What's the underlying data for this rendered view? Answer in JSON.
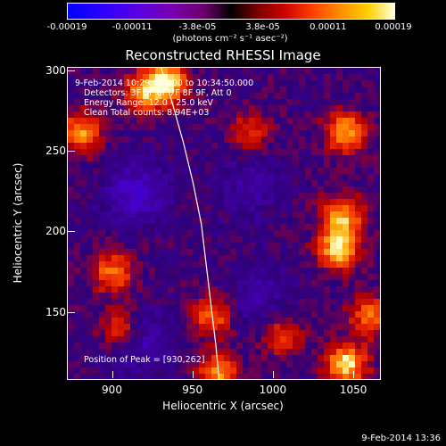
{
  "colorbar": {
    "ticks": [
      "-0.00019",
      "-0.00011",
      "-3.8e-05",
      "3.8e-05",
      "0.00011",
      "0.00019"
    ],
    "units": "(photons cm⁻² s⁻¹ asec⁻²)",
    "colors": [
      "#0000ff",
      "#7a00b0",
      "#000000",
      "#c80000",
      "#ff9000",
      "#ffffd8"
    ]
  },
  "title": "Reconstructed RHESSI Image",
  "info": {
    "line1": "9-Feb-2014 10:29:00.000 to 10:34:50.000",
    "line2": "Detectors: 3F 5F 6F 7F 8F 9F, Att 0",
    "line3": "Energy Range: 12.0 - 25.0 keV",
    "line4": "Clean     Total counts: 8.94E+03",
    "peak": "Position of Peak = [930,262]"
  },
  "chart_data": {
    "type": "heatmap",
    "title": "Reconstructed RHESSI Image",
    "xlabel": "Heliocentric X (arcsec)",
    "ylabel": "Heliocentric Y (arcsec)",
    "xlim": [
      872,
      1066
    ],
    "ylim": [
      109,
      302
    ],
    "xticks": [
      900,
      950,
      1000,
      1050
    ],
    "yticks": [
      150,
      200,
      250,
      300
    ],
    "xtick_labels": [
      "900",
      "950",
      "1000",
      "1050"
    ],
    "ytick_labels": [
      "150",
      "200",
      "250",
      "300"
    ],
    "colorscale_range": [
      -0.00019,
      0.00019
    ],
    "peak_position": [
      930,
      262
    ],
    "limb_curve": [
      [
        930,
        302
      ],
      [
        937,
        280
      ],
      [
        944,
        255
      ],
      [
        950,
        230
      ],
      [
        955,
        205
      ],
      [
        958,
        180
      ],
      [
        961,
        155
      ],
      [
        964,
        130
      ],
      [
        966,
        109
      ]
    ],
    "bright_sources": [
      {
        "x": 880,
        "y": 262,
        "level": 0.7
      },
      {
        "x": 933,
        "y": 293,
        "level": 1.0
      },
      {
        "x": 918,
        "y": 286,
        "level": 0.6
      },
      {
        "x": 1045,
        "y": 262,
        "level": 0.75
      },
      {
        "x": 1040,
        "y": 190,
        "level": 0.9
      },
      {
        "x": 1043,
        "y": 210,
        "level": 0.75
      },
      {
        "x": 900,
        "y": 175,
        "level": 0.65
      },
      {
        "x": 905,
        "y": 140,
        "level": 0.6
      },
      {
        "x": 962,
        "y": 148,
        "level": 0.6
      },
      {
        "x": 1045,
        "y": 118,
        "level": 0.9
      },
      {
        "x": 965,
        "y": 112,
        "level": 0.7
      },
      {
        "x": 1060,
        "y": 148,
        "level": 0.6
      },
      {
        "x": 1005,
        "y": 135,
        "level": 0.5
      },
      {
        "x": 985,
        "y": 262,
        "level": 0.45
      }
    ],
    "dark_regions": [
      {
        "x": 915,
        "y": 225,
        "level": 0.8
      },
      {
        "x": 915,
        "y": 133,
        "level": 0.7
      },
      {
        "x": 985,
        "y": 230,
        "level": 0.5
      },
      {
        "x": 990,
        "y": 160,
        "level": 0.5
      }
    ]
  },
  "timestamp": "9-Feb-2014 13:36"
}
